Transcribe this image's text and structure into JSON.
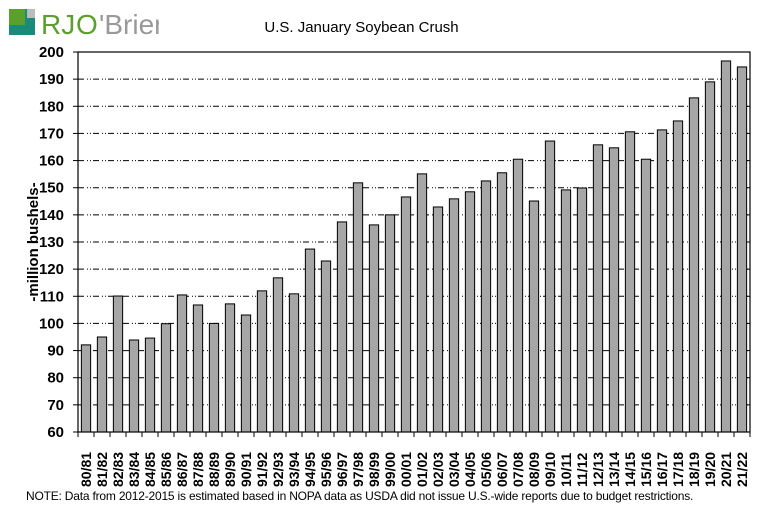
{
  "logo_text": "RJO'Brien",
  "note": "NOTE: Data from 2012-2015 is estimated based in NOPA data as USDA did not issue U.S.-wide reports due to budget restrictions.",
  "colors": {
    "bar_fill": "#a6a6a6",
    "bar_stroke": "#000000",
    "logo_green": "#5aa02c",
    "logo_teal": "#1a8a7a",
    "logo_gray": "#999999"
  },
  "chart_data": {
    "type": "bar",
    "title": "U.S. January Soybean Crush",
    "xlabel": "",
    "ylabel": "-million bushels-",
    "ylim": [
      60,
      200
    ],
    "yticks": [
      60,
      70,
      80,
      90,
      100,
      110,
      120,
      130,
      140,
      150,
      160,
      170,
      180,
      190,
      200
    ],
    "grid": true,
    "categories": [
      "80/81",
      "81/82",
      "82/83",
      "83/84",
      "84/85",
      "85/86",
      "86/87",
      "87/88",
      "88/89",
      "89/90",
      "90/91",
      "91/92",
      "92/93",
      "93/94",
      "94/95",
      "95/96",
      "96/97",
      "97/98",
      "98/99",
      "99/00",
      "00/01",
      "01/02",
      "02/03",
      "03/04",
      "04/05",
      "05/06",
      "06/07",
      "07/08",
      "08/09",
      "09/10",
      "10/11",
      "11/12",
      "12/13",
      "13/14",
      "14/15",
      "15/16",
      "16/17",
      "17/18",
      "18/19",
      "19/20",
      "20/21",
      "21/22"
    ],
    "values": [
      92.1,
      95.0,
      110.1,
      93.9,
      94.6,
      99.9,
      110.5,
      106.8,
      100.0,
      107.2,
      103.1,
      112.0,
      116.8,
      110.9,
      127.4,
      123.0,
      137.4,
      151.8,
      136.3,
      140.0,
      146.6,
      155.1,
      142.9,
      145.9,
      148.5,
      152.5,
      155.5,
      160.5,
      145.1,
      167.2,
      149.2,
      149.9,
      165.8,
      164.7,
      170.6,
      160.5,
      171.3,
      174.6,
      183.1,
      189.0,
      196.7,
      194.5
    ]
  }
}
